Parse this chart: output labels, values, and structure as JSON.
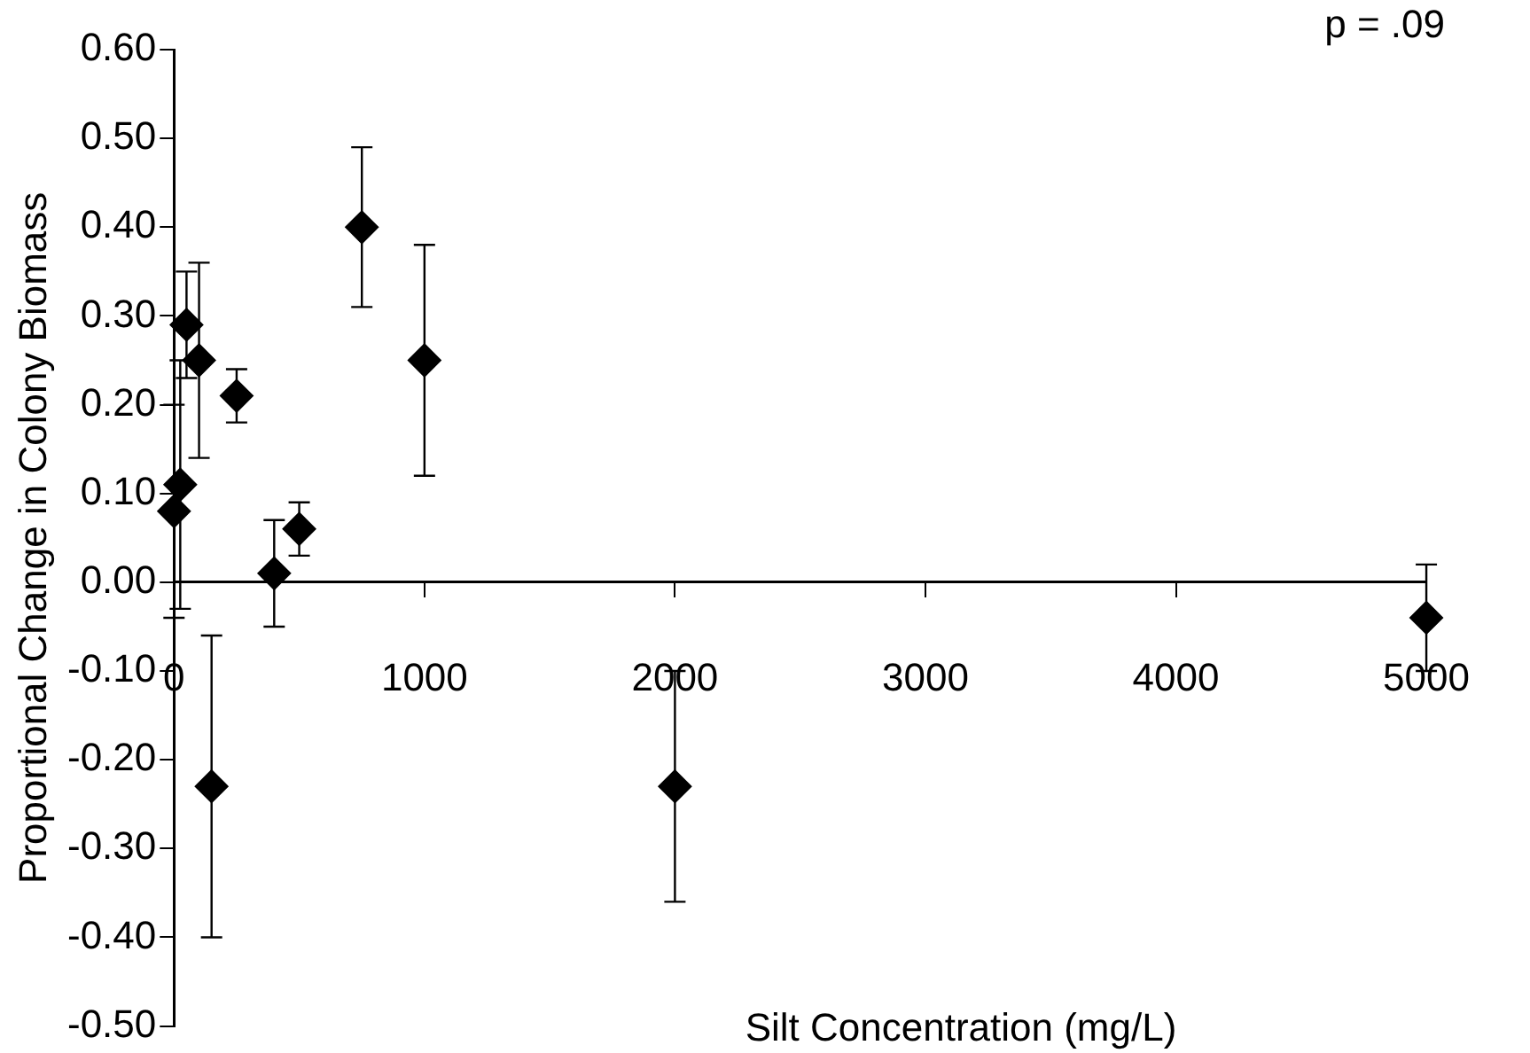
{
  "chart_data": {
    "type": "scatter",
    "xlabel": "Silt Concentration (mg/L)",
    "ylabel": "Proportional Change in Colony Biomass",
    "annotations": [
      "p = .09"
    ],
    "x": [
      0,
      25,
      50,
      100,
      150,
      250,
      400,
      500,
      750,
      1000,
      2000,
      5000
    ],
    "values": [
      0.08,
      0.11,
      0.29,
      0.25,
      -0.23,
      0.21,
      0.01,
      0.06,
      0.4,
      0.25,
      -0.23,
      -0.04
    ],
    "errors": [
      0.12,
      0.14,
      0.06,
      0.11,
      0.17,
      0.03,
      0.06,
      0.03,
      [
        0.31,
        0.49
      ],
      0.13,
      0.13,
      0.06
    ],
    "color": "#000000",
    "marker": "diamond",
    "grid": false,
    "xlim": [
      0,
      5000
    ],
    "xticks": [
      0,
      1000,
      2000,
      3000,
      4000,
      5000
    ],
    "ylim": [
      -0.5,
      0.6
    ],
    "yticks": [
      {
        "value": -0.5,
        "label": "-0.50"
      },
      {
        "value": -0.4,
        "label": "-0.40"
      },
      {
        "value": -0.3,
        "label": "-0.30"
      },
      {
        "value": -0.2,
        "label": "-0.20"
      },
      {
        "value": -0.1,
        "label": "-0.10"
      },
      {
        "value": 0,
        "label": "0.00"
      },
      {
        "value": 0.1,
        "label": "0.10"
      },
      {
        "value": 0.2,
        "label": "0.20"
      },
      {
        "value": 0.3,
        "label": "0.30"
      },
      {
        "value": 0.4,
        "label": "0.40"
      },
      {
        "value": 0.5,
        "label": "0.50"
      },
      {
        "value": 0.6,
        "label": "0.60"
      }
    ]
  }
}
